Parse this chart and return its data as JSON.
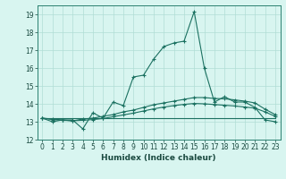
{
  "xlabel": "Humidex (Indice chaleur)",
  "bg_color": "#d8f5f0",
  "grid_color": "#b0ddd5",
  "line_color": "#1a7060",
  "xlim": [
    -0.5,
    23.5
  ],
  "ylim": [
    12,
    19.5
  ],
  "yticks": [
    12,
    13,
    14,
    15,
    16,
    17,
    18,
    19
  ],
  "xticks": [
    0,
    1,
    2,
    3,
    4,
    5,
    6,
    7,
    8,
    9,
    10,
    11,
    12,
    13,
    14,
    15,
    16,
    17,
    18,
    19,
    20,
    21,
    22,
    23
  ],
  "series1_x": [
    0,
    1,
    2,
    3,
    4,
    5,
    6,
    7,
    8,
    9,
    10,
    11,
    12,
    13,
    14,
    15,
    16,
    17,
    18,
    19,
    20,
    21,
    22,
    23
  ],
  "series1_y": [
    13.2,
    13.0,
    13.1,
    13.1,
    12.6,
    13.5,
    13.2,
    14.1,
    13.9,
    15.5,
    15.6,
    16.5,
    17.2,
    17.4,
    17.5,
    19.15,
    16.0,
    14.1,
    14.4,
    14.1,
    14.1,
    13.8,
    13.1,
    13.0
  ],
  "series2_x": [
    0,
    1,
    2,
    3,
    4,
    5,
    6,
    7,
    8,
    9,
    10,
    11,
    12,
    13,
    14,
    15,
    16,
    17,
    18,
    19,
    20,
    21,
    22,
    23
  ],
  "series2_y": [
    13.2,
    13.15,
    13.1,
    13.05,
    13.15,
    13.2,
    13.3,
    13.4,
    13.55,
    13.65,
    13.8,
    13.95,
    14.05,
    14.15,
    14.25,
    14.35,
    14.35,
    14.3,
    14.28,
    14.22,
    14.15,
    14.05,
    13.7,
    13.4
  ],
  "series3_x": [
    0,
    1,
    2,
    3,
    4,
    5,
    6,
    7,
    8,
    9,
    10,
    11,
    12,
    13,
    14,
    15,
    16,
    17,
    18,
    19,
    20,
    21,
    22,
    23
  ],
  "series3_y": [
    13.2,
    13.12,
    13.08,
    13.05,
    13.08,
    13.12,
    13.18,
    13.28,
    13.38,
    13.48,
    13.6,
    13.72,
    13.82,
    13.9,
    13.97,
    14.02,
    14.0,
    13.96,
    13.92,
    13.88,
    13.82,
    13.76,
    13.55,
    13.3
  ],
  "series4_x": [
    0,
    23
  ],
  "series4_y": [
    13.2,
    13.2
  ],
  "xlabel_fontsize": 6.5,
  "tick_fontsize": 5.5
}
